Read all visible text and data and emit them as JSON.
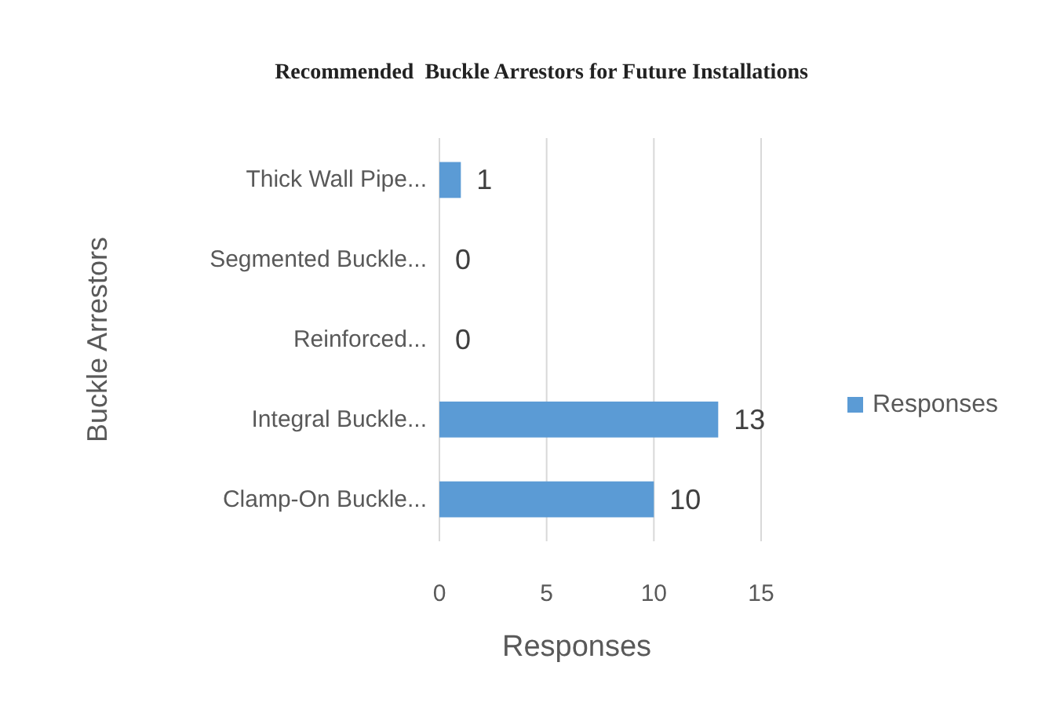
{
  "chart_data": {
    "type": "bar",
    "orientation": "horizontal",
    "title": "Recommended  Buckle Arrestors for Future Installations",
    "xlabel": "Responses",
    "ylabel": "Buckle Arrestors",
    "categories": [
      "Thick Wall Pipe...",
      "Segmented Buckle...",
      "Reinforced...",
      "Integral Buckle...",
      "Clamp-On Buckle..."
    ],
    "series": [
      {
        "name": "Responses",
        "color": "#5b9bd5",
        "values": [
          1,
          0,
          0,
          13,
          10
        ]
      }
    ],
    "xlim": [
      0,
      15
    ],
    "xticks": [
      0,
      5,
      10,
      15
    ],
    "grid": "x",
    "legend": "right",
    "data_labels": true
  }
}
